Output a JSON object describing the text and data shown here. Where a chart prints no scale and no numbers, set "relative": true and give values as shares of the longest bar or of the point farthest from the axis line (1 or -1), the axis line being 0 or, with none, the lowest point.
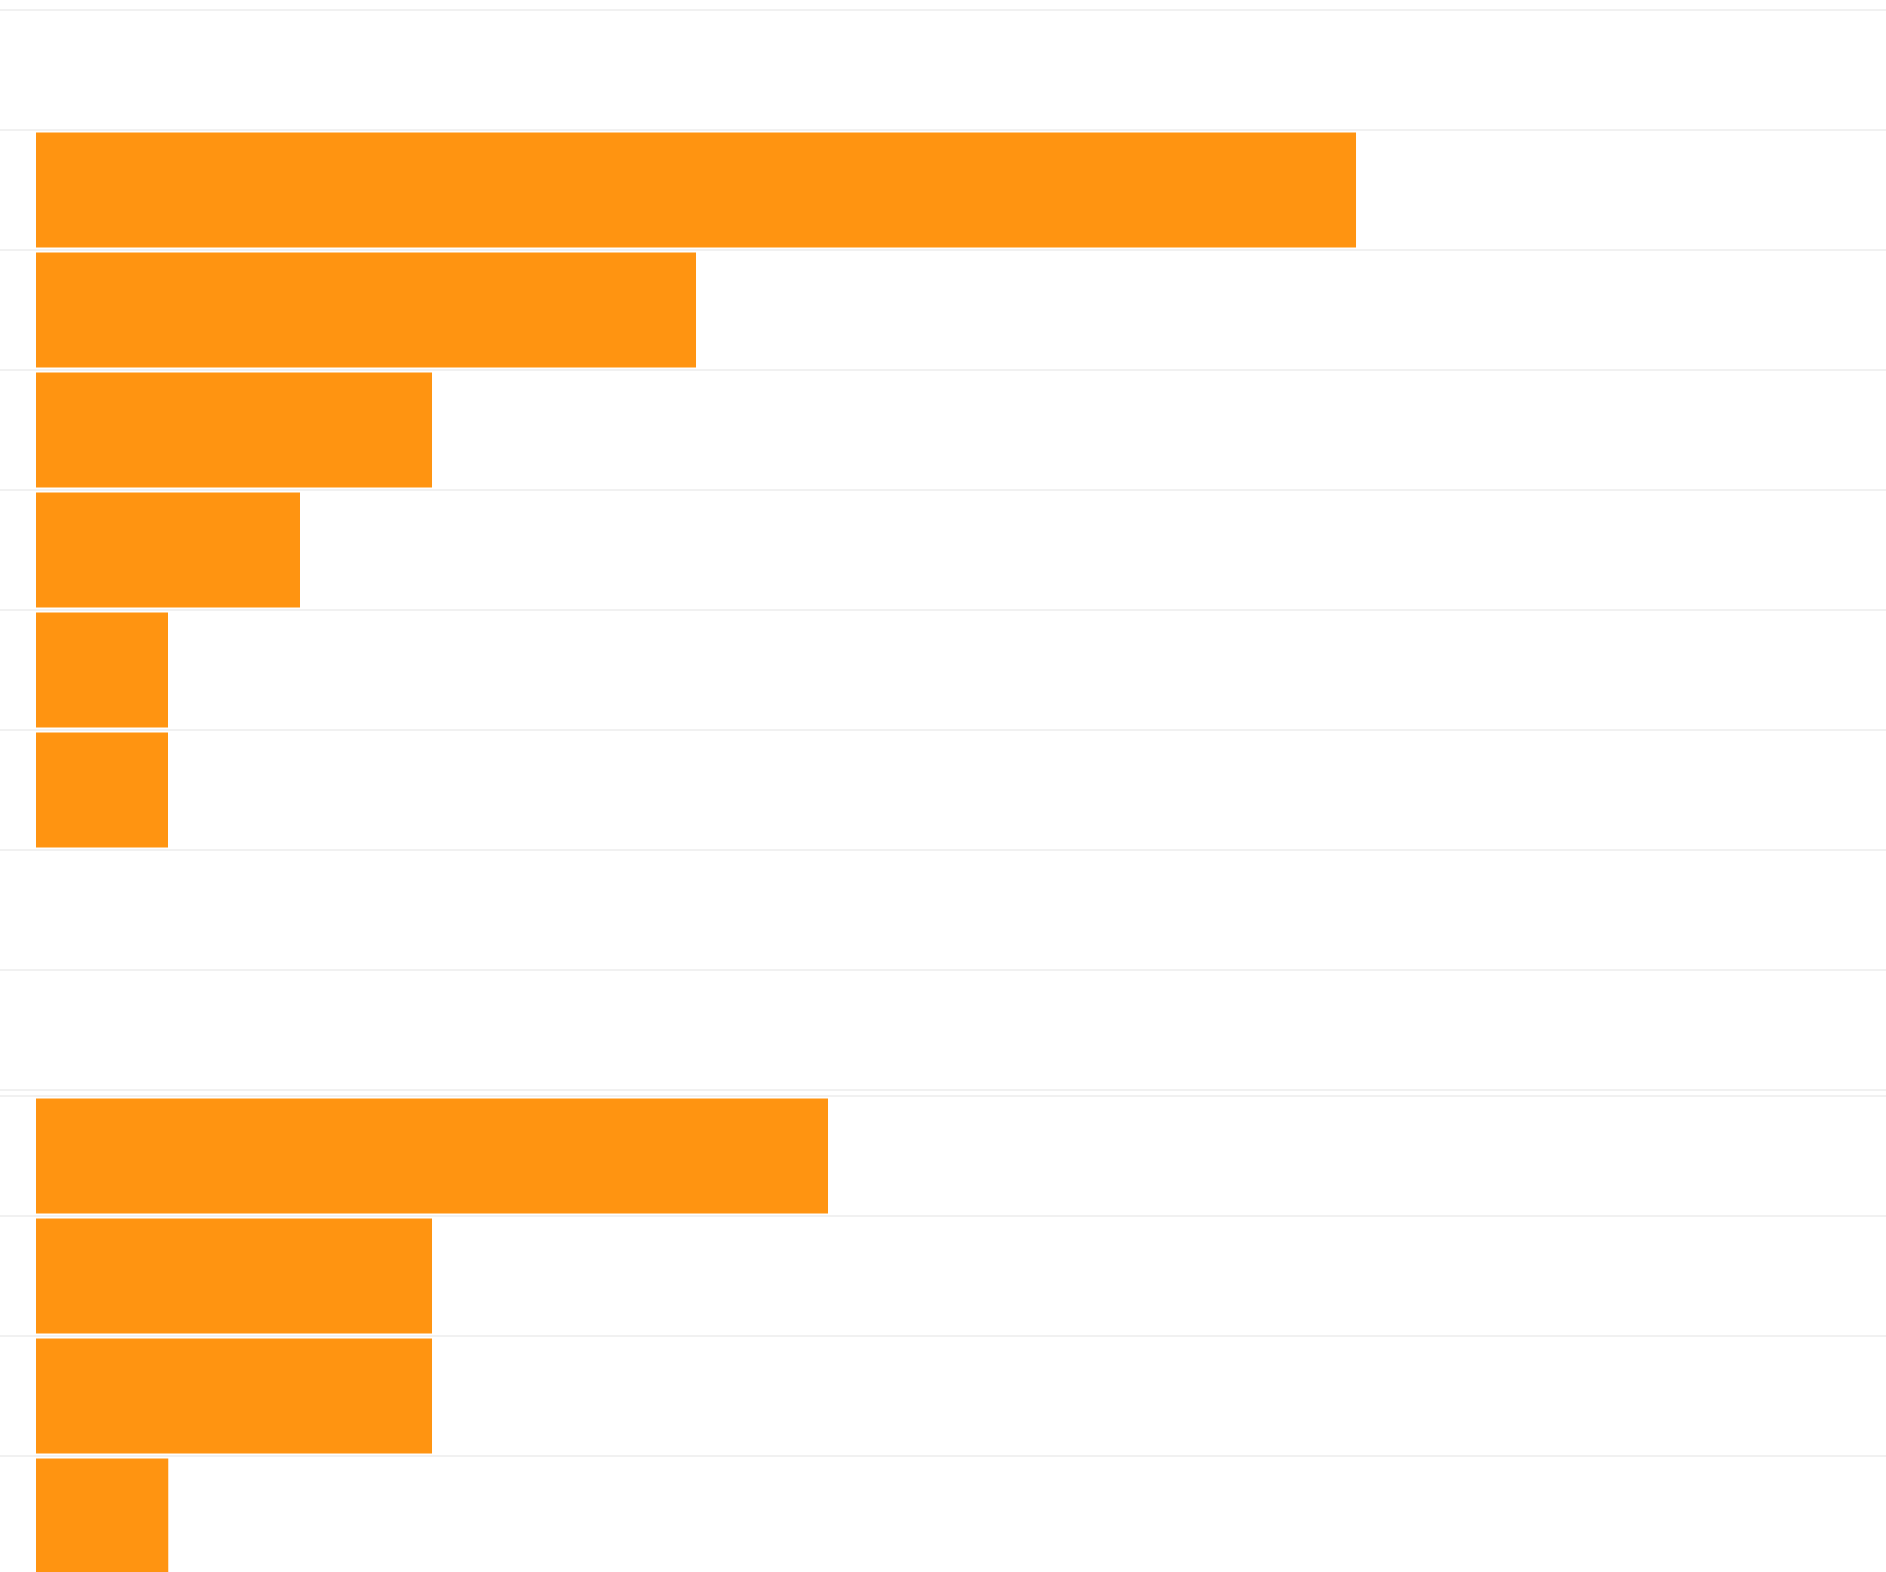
{
  "chart_data": [
    {
      "type": "bar",
      "orientation": "horizontal",
      "relative": true,
      "grid": true,
      "color": "#ff9411",
      "categories": [
        null,
        null,
        null,
        null,
        null,
        null
      ],
      "values": [
        1,
        0.5,
        0.3,
        0.2,
        0.1,
        0.1
      ]
    },
    {
      "type": "bar",
      "orientation": "horizontal",
      "relative": true,
      "grid": true,
      "color": "#ff9411",
      "categories": [
        null,
        null,
        null,
        null
      ],
      "values": [
        1,
        0.5,
        0.5,
        0.167
      ]
    }
  ]
}
